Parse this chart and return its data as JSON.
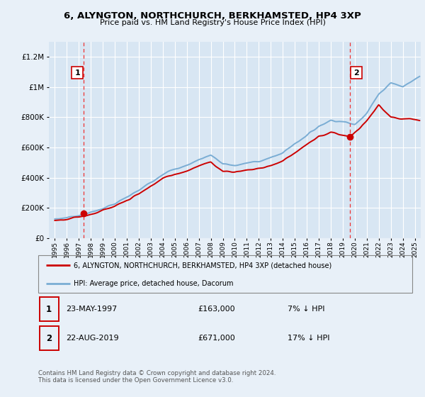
{
  "title": "6, ALYNGTON, NORTHCHURCH, BERKHAMSTED, HP4 3XP",
  "subtitle": "Price paid vs. HM Land Registry's House Price Index (HPI)",
  "legend_label_red": "6, ALYNGTON, NORTHCHURCH, BERKHAMSTED, HP4 3XP (detached house)",
  "legend_label_blue": "HPI: Average price, detached house, Dacorum",
  "transaction1_date": "23-MAY-1997",
  "transaction1_price": 163000,
  "transaction1_hpi": "7% ↓ HPI",
  "transaction1_year": 1997.37,
  "transaction2_date": "22-AUG-2019",
  "transaction2_price": 671000,
  "transaction2_hpi": "17% ↓ HPI",
  "transaction2_year": 2019.62,
  "footer": "Contains HM Land Registry data © Crown copyright and database right 2024.\nThis data is licensed under the Open Government Licence v3.0.",
  "ylim_min": 0,
  "ylim_max": 1300000,
  "ytick_interval": 200000,
  "xmin": 1994.5,
  "xmax": 2025.5,
  "bg_color": "#e8f0f8",
  "plot_bg_color": "#d8e6f3",
  "grid_color": "#ffffff",
  "red_color": "#cc0000",
  "blue_color": "#7aadd4",
  "red_dashed_color": "#ee3333"
}
